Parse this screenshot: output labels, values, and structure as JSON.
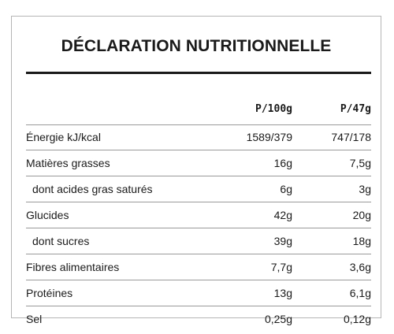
{
  "title": "DÉCLARATION NUTRITIONNELLE",
  "columns": [
    "P/100g",
    "P/47g"
  ],
  "rows": [
    {
      "label": "Énergie kJ/kcal",
      "per100": "1589/379",
      "per47": "747/178"
    },
    {
      "label": "Matières grasses",
      "per100": "16g",
      "per47": "7,5g"
    },
    {
      "label": "dont acides gras saturés",
      "per100": "6g",
      "per47": "3g"
    },
    {
      "label": "Glucides",
      "per100": "42g",
      "per47": "20g"
    },
    {
      "label": "dont sucres",
      "per100": "39g",
      "per47": "18g"
    },
    {
      "label": "Fibres alimentaires",
      "per100": "7,7g",
      "per47": "3,6g"
    },
    {
      "label": "Protéines",
      "per100": "13g",
      "per47": "6,1g"
    },
    {
      "label": "Sel",
      "per100": "0,25g",
      "per47": "0,12g"
    }
  ]
}
